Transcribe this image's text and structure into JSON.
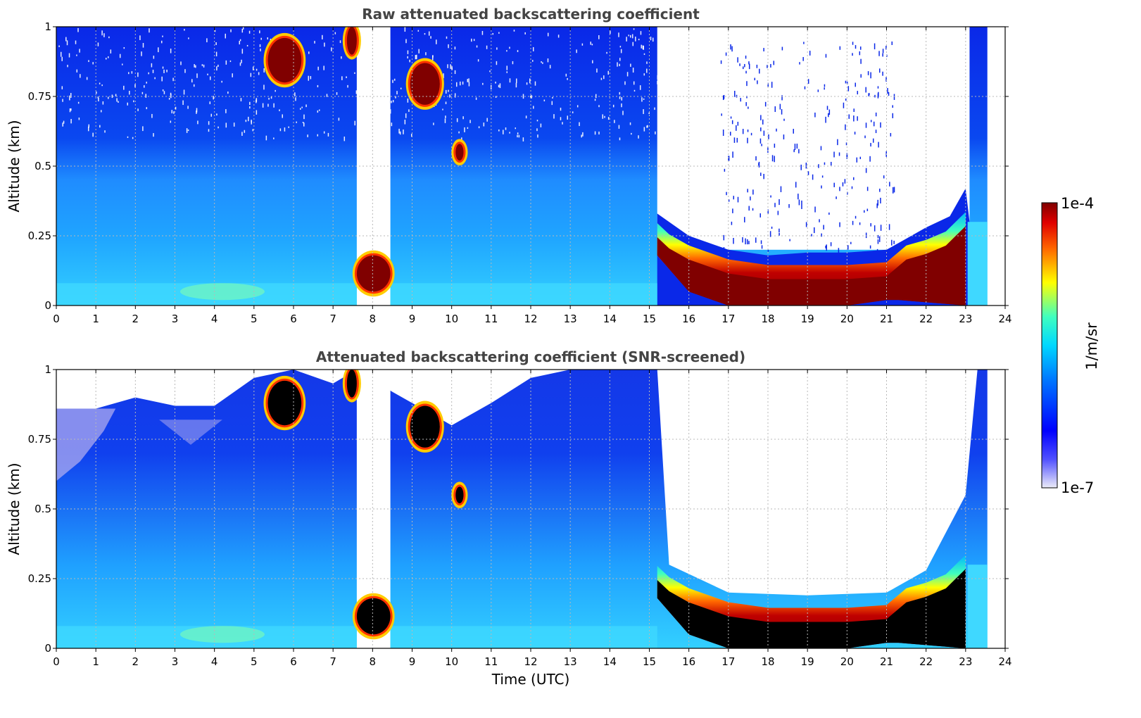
{
  "chart_data": [
    {
      "type": "heatmap",
      "title": "Raw attenuated backscattering coefficient",
      "xlabel": "",
      "ylabel": "Altitude (km)",
      "xlim": [
        0,
        24
      ],
      "ylim": [
        0,
        1
      ],
      "xticks": [
        "0",
        "1",
        "2",
        "3",
        "4",
        "5",
        "6",
        "7",
        "8",
        "9",
        "10",
        "11",
        "12",
        "13",
        "14",
        "15",
        "16",
        "17",
        "18",
        "19",
        "20",
        "21",
        "22",
        "23",
        "24"
      ],
      "yticks": [
        "0",
        "0.25",
        "0.5",
        "0.75",
        "1"
      ],
      "grid": true,
      "data_extent_hours": [
        0,
        23.55
      ],
      "gaps": [
        [
          7.6,
          8.45
        ]
      ],
      "cloud_layers": [
        {
          "t_start": 5.35,
          "t_end": 6.2,
          "alt_bottom": 0.8,
          "alt_top": 0.96
        },
        {
          "t_start": 7.35,
          "t_end": 7.6,
          "alt_bottom": 0.9,
          "alt_top": 1.0
        },
        {
          "t_start": 8.95,
          "t_end": 9.7,
          "alt_bottom": 0.72,
          "alt_top": 0.87
        },
        {
          "t_start": 10.1,
          "t_end": 10.3,
          "alt_bottom": 0.52,
          "alt_top": 0.58
        },
        {
          "t_start": 7.6,
          "t_end": 8.45,
          "alt_bottom": 0.05,
          "alt_top": 0.18
        },
        {
          "t_start": 15.2,
          "t_end": 23.0,
          "alt_bottom": 0.0,
          "alt_top": 0.26
        }
      ]
    },
    {
      "type": "heatmap",
      "title": "Attenuated backscattering coefficient (SNR-screened)",
      "xlabel": "Time (UTC)",
      "ylabel": "Altitude (km)",
      "xlim": [
        0,
        24
      ],
      "ylim": [
        0,
        1
      ],
      "xticks": [
        "0",
        "1",
        "2",
        "3",
        "4",
        "5",
        "6",
        "7",
        "8",
        "9",
        "10",
        "11",
        "12",
        "13",
        "14",
        "15",
        "16",
        "17",
        "18",
        "19",
        "20",
        "21",
        "22",
        "23",
        "24"
      ],
      "yticks": [
        "0",
        "0.25",
        "0.5",
        "0.75",
        "1"
      ],
      "grid": true,
      "data_extent_hours": [
        0,
        23.55
      ],
      "screened_top_profile": [
        [
          0,
          0.86
        ],
        [
          1,
          0.86
        ],
        [
          2,
          0.9
        ],
        [
          3,
          0.87
        ],
        [
          4,
          0.87
        ],
        [
          5,
          0.97
        ],
        [
          6,
          1.0
        ],
        [
          7,
          0.95
        ],
        [
          7.6,
          1.0
        ],
        [
          8.5,
          0.92
        ],
        [
          10,
          0.8
        ],
        [
          11,
          0.88
        ],
        [
          12,
          0.97
        ],
        [
          13,
          1.0
        ],
        [
          15.2,
          1.0
        ],
        [
          15.5,
          0.3
        ],
        [
          17,
          0.2
        ],
        [
          19,
          0.19
        ],
        [
          21,
          0.2
        ],
        [
          22,
          0.28
        ],
        [
          23,
          0.55
        ],
        [
          23.3,
          1.0
        ]
      ],
      "saturated_regions_color": "#000000"
    }
  ],
  "colorbar": {
    "label": "1/m/sr",
    "max_label": "1e-4",
    "min_label": "1e-7",
    "colors": [
      "#ececf8",
      "#0000ff",
      "#00b4ff",
      "#3fffbf",
      "#ffff00",
      "#ff6600",
      "#800000"
    ]
  }
}
